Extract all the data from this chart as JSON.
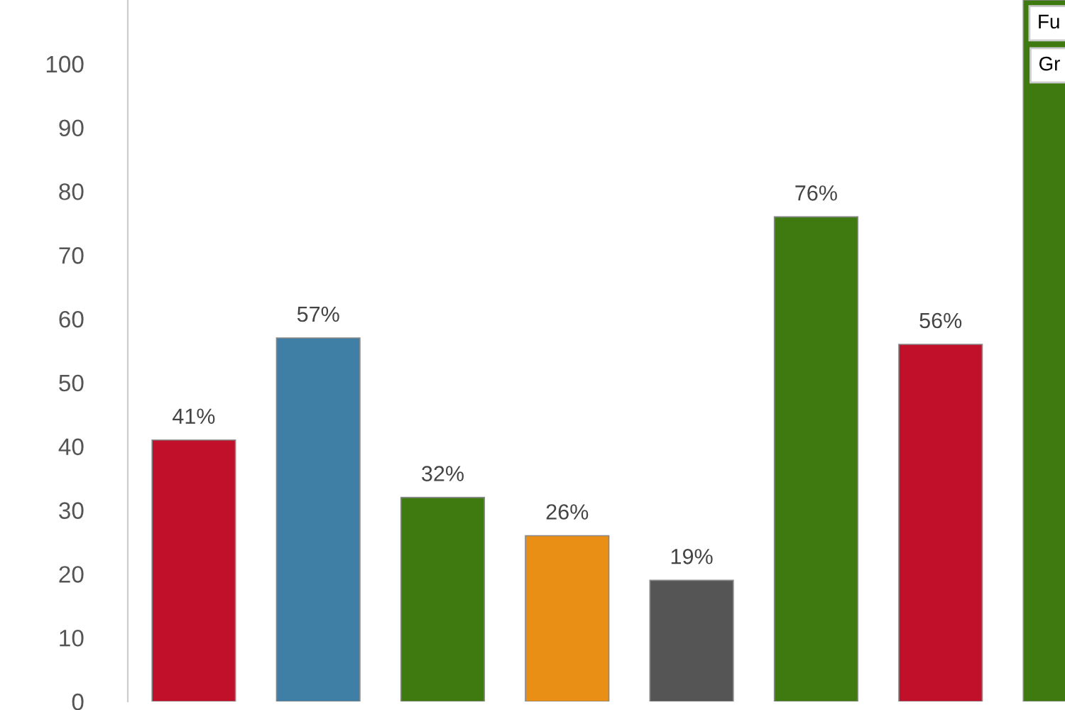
{
  "chart_data": {
    "type": "bar",
    "categories": [
      null,
      null,
      null,
      null,
      null,
      null,
      null,
      null
    ],
    "values": [
      41,
      57,
      32,
      26,
      19,
      76,
      56,
      110
    ],
    "colors": [
      "#c0102a",
      "#3f7fa6",
      "#3f7a10",
      "#e98f16",
      "#555555",
      "#3f7a10",
      "#c0102a",
      "#3f7a10"
    ],
    "value_labels": [
      "41%",
      "57%",
      "32%",
      "26%",
      "19%",
      "76%",
      "56%",
      null
    ],
    "ylim": [
      0,
      110
    ],
    "yticks": [
      0,
      10,
      20,
      30,
      40,
      50,
      60,
      70,
      80,
      90,
      100
    ],
    "grid": false,
    "annotations": [
      "Fu",
      "Gr"
    ]
  }
}
